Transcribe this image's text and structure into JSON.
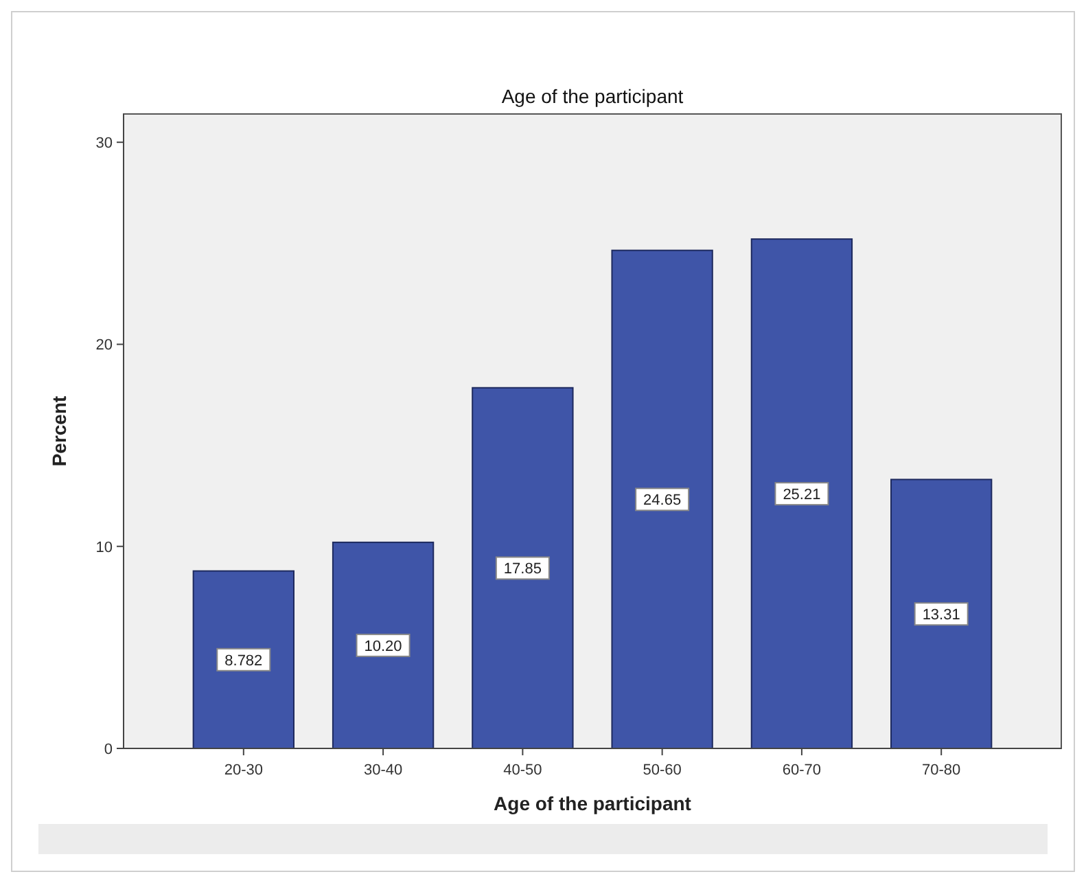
{
  "chart_data": {
    "type": "bar",
    "title": "Age of the participant",
    "xlabel": "Age of the participant",
    "ylabel": "Percent",
    "categories": [
      "20-30",
      "30-40",
      "40-50",
      "50-60",
      "60-70",
      "70-80"
    ],
    "values": [
      8.782,
      10.2,
      17.85,
      24.65,
      25.21,
      13.31
    ],
    "value_labels": [
      "8.782",
      "10.20",
      "17.85",
      "24.65",
      "25.21",
      "13.31"
    ],
    "color": "#3f55a8",
    "ylim": [
      0,
      31.4
    ],
    "yticks": [
      0,
      10,
      20,
      30
    ],
    "grid": false
  }
}
